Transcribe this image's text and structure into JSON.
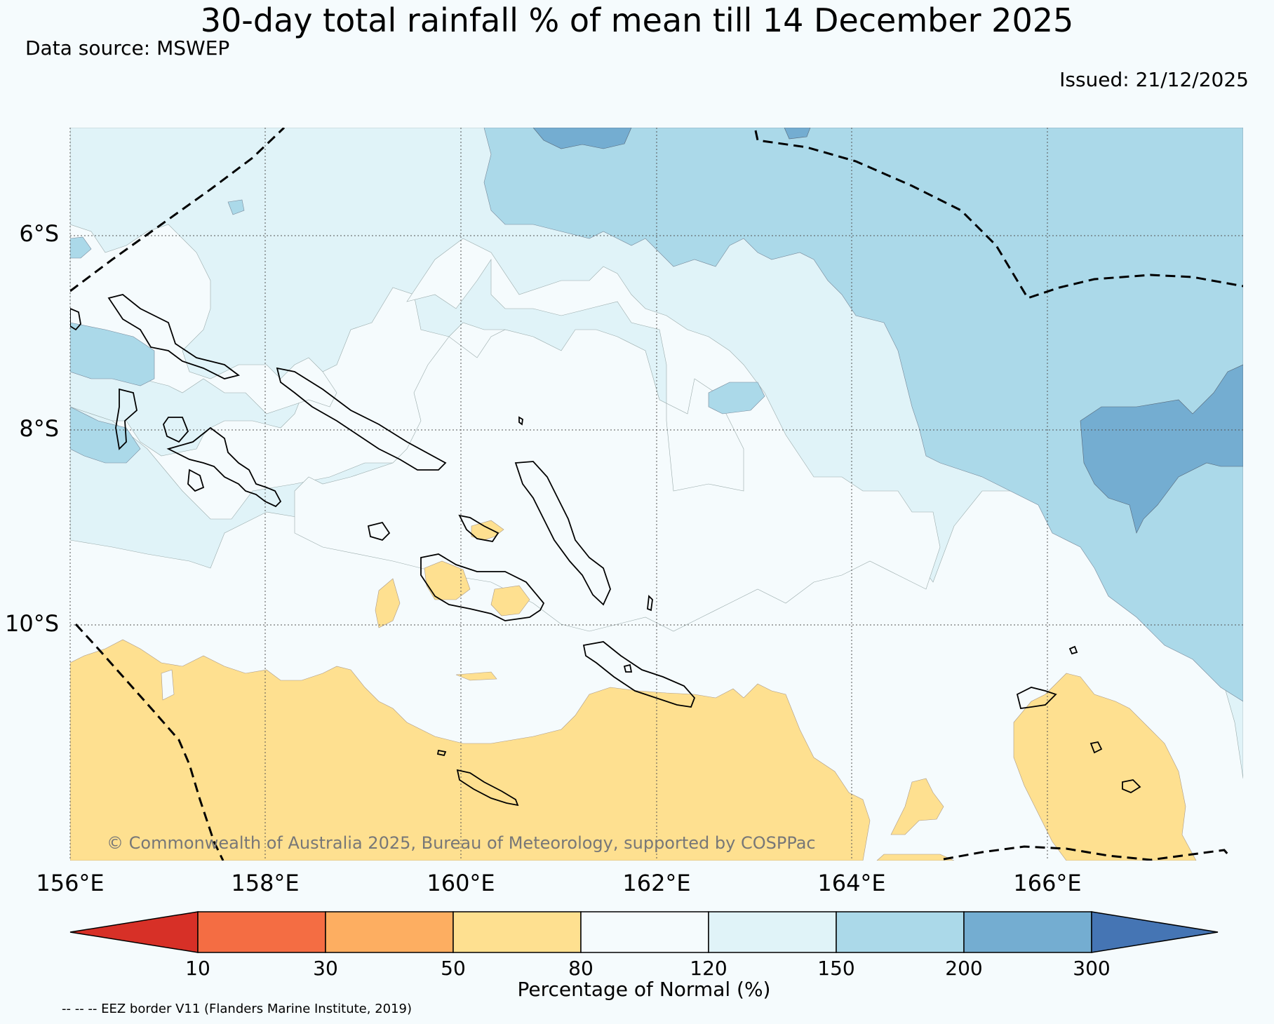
{
  "title": "30-day total rainfall % of mean till 14 December 2025",
  "data_source": "Data source: MSWEP",
  "issued": "Issued: 21/12/2025",
  "copyright": "© Commonwealth of Australia 2025, Bureau of Meteorology, supported by COSPPac",
  "footnote": "-- -- -- EEZ border V11 (Flanders Marine Institute, 2019)",
  "map": {
    "lon_labels": [
      "156°E",
      "158°E",
      "160°E",
      "162°E",
      "164°E",
      "166°E"
    ],
    "lat_labels": [
      "6°S",
      "8°S",
      "10°S"
    ]
  },
  "legend": {
    "label": "Percentage of Normal (%)",
    "ticks": [
      "10",
      "30",
      "50",
      "80",
      "120",
      "150",
      "200",
      "300"
    ],
    "colors": [
      "#d73027",
      "#f46d43",
      "#fdae61",
      "#fee090",
      "#f5fbfd",
      "#e0f3f8",
      "#abd9e9",
      "#74add1",
      "#4575b4"
    ]
  }
}
